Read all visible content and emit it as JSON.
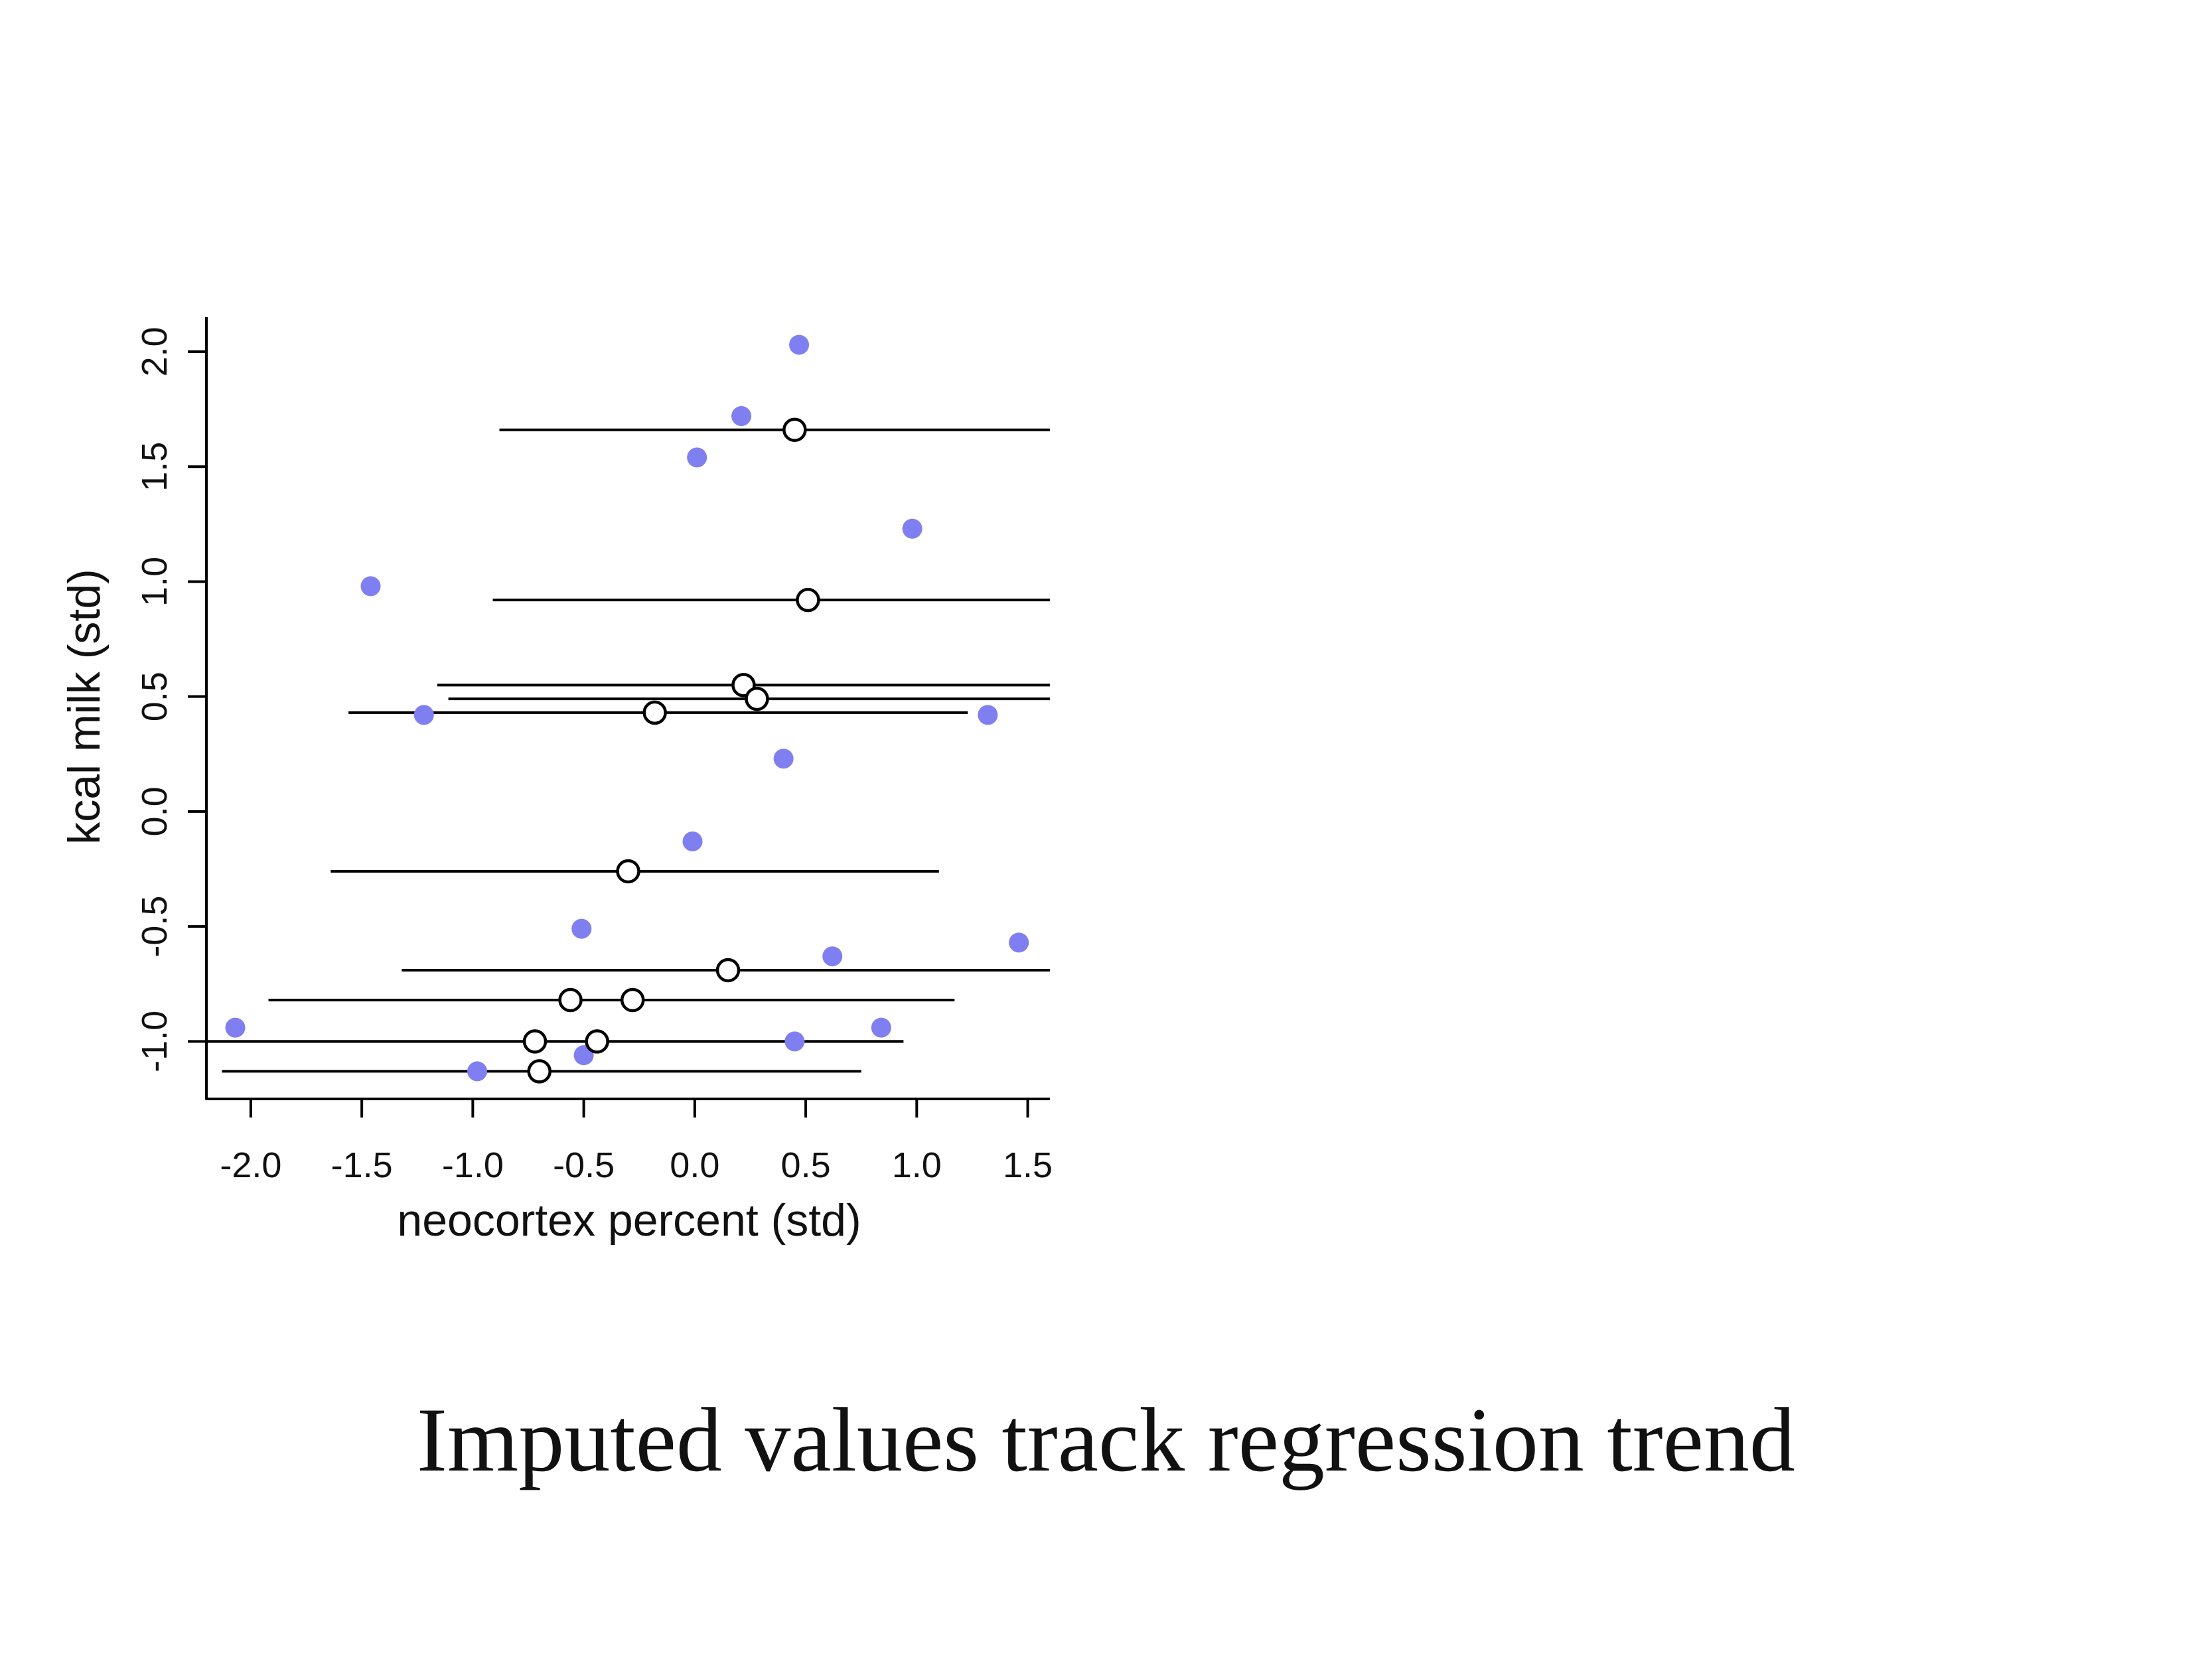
{
  "caption": "Imputed values track regression trend",
  "chart_data": {
    "type": "scatter",
    "xlabel": "neocortex percent (std)",
    "ylabel": "kcal milk (std)",
    "xlim": [
      -2.2,
      1.6
    ],
    "ylim": [
      -1.25,
      2.15
    ],
    "x_ticks": [
      "-2.0",
      "-1.5",
      "-1.0",
      "-0.5",
      "0.0",
      "0.5",
      "1.0",
      "1.5"
    ],
    "y_ticks": [
      "-1.0",
      "-0.5",
      "0.0",
      "0.5",
      "1.0",
      "1.5",
      "2.0"
    ],
    "grid": false,
    "colors": {
      "observed": "#7f7ff2",
      "imputed": "#000000"
    },
    "series": [
      {
        "marker": "filled-circle",
        "points": [
          {
            "x": 0.47,
            "y": 2.03
          },
          {
            "x": 0.21,
            "y": 1.72
          },
          {
            "x": 0.01,
            "y": 1.54
          },
          {
            "x": 0.98,
            "y": 1.23
          },
          {
            "x": -1.46,
            "y": 0.98
          },
          {
            "x": -1.22,
            "y": 0.42
          },
          {
            "x": 1.32,
            "y": 0.42
          },
          {
            "x": 0.4,
            "y": 0.23
          },
          {
            "x": -0.01,
            "y": -0.13
          },
          {
            "x": -0.51,
            "y": -0.51
          },
          {
            "x": 1.46,
            "y": -0.57
          },
          {
            "x": 0.62,
            "y": -0.63
          },
          {
            "x": -2.07,
            "y": -0.94
          },
          {
            "x": 0.84,
            "y": -0.94
          },
          {
            "x": 0.45,
            "y": -1.0
          },
          {
            "x": -0.5,
            "y": -1.06
          },
          {
            "x": -0.98,
            "y": -1.13
          }
        ]
      },
      {
        "marker": "open-circle",
        "points": [
          {
            "x": 0.45,
            "y": 1.66,
            "lo": -0.88,
            "hi": 1.6
          },
          {
            "x": 0.51,
            "y": 0.92,
            "lo": -0.91,
            "hi": 1.6
          },
          {
            "x": 0.22,
            "y": 0.55,
            "lo": -1.16,
            "hi": 1.6
          },
          {
            "x": 0.28,
            "y": 0.49,
            "lo": -1.11,
            "hi": 1.6
          },
          {
            "x": -0.18,
            "y": 0.43,
            "lo": -1.56,
            "hi": 1.23
          },
          {
            "x": -0.3,
            "y": -0.26,
            "lo": -1.64,
            "hi": 1.1
          },
          {
            "x": 0.15,
            "y": -0.69,
            "lo": -1.32,
            "hi": 1.6
          },
          {
            "x": -0.56,
            "y": -0.82,
            "lo": -1.92,
            "hi": 1.17
          },
          {
            "x": -0.28,
            "y": -0.82,
            "lo": -1.92,
            "hi": 1.17
          },
          {
            "x": -0.72,
            "y": -1.0,
            "lo": -2.2,
            "hi": 0.94
          },
          {
            "x": -0.44,
            "y": -1.0,
            "lo": -2.2,
            "hi": 0.94
          },
          {
            "x": -0.7,
            "y": -1.13,
            "lo": -2.13,
            "hi": 0.75
          }
        ]
      }
    ]
  }
}
